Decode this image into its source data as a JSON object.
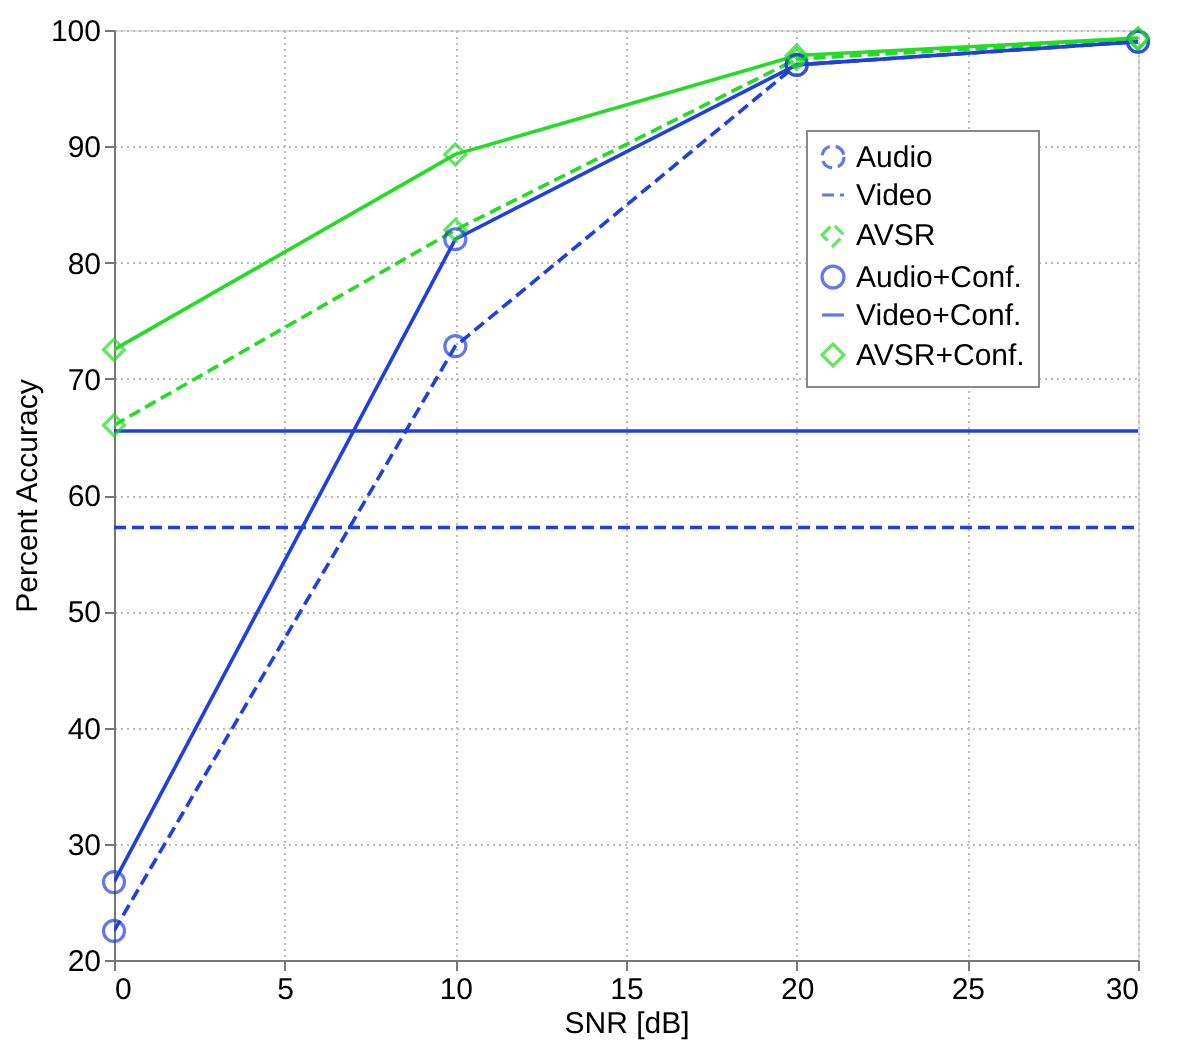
{
  "chart_data": {
    "type": "line",
    "xlabel": "SNR [dB]",
    "ylabel": "Percent Accuracy",
    "x": [
      0,
      10,
      20,
      30
    ],
    "series": [
      {
        "name": "Audio",
        "color": "#1f3fe0",
        "values": [
          22.5,
          72.8,
          97.0,
          99.0
        ],
        "marker": "circle",
        "line_style": "dashed"
      },
      {
        "name": "Video",
        "color": "#1f3fe0",
        "values": [
          57.2,
          57.2,
          57.2,
          57.2
        ],
        "marker": "none",
        "line_style": "dashed"
      },
      {
        "name": "AVSR",
        "color": "#22dd22",
        "values": [
          66.0,
          82.8,
          97.5,
          99.2
        ],
        "marker": "diamond",
        "line_style": "dashed"
      },
      {
        "name": "Audio+Conf.",
        "color": "#1f3fe0",
        "values": [
          26.7,
          82.0,
          97.0,
          99.0
        ],
        "marker": "circle",
        "line_style": "solid"
      },
      {
        "name": "Video+Conf.",
        "color": "#1f3fe0",
        "values": [
          65.5,
          65.5,
          65.5,
          65.5
        ],
        "marker": "none",
        "line_style": "solid"
      },
      {
        "name": "AVSR+Conf.",
        "color": "#22dd22",
        "values": [
          72.5,
          89.3,
          97.8,
          99.3
        ],
        "marker": "diamond",
        "line_style": "solid"
      }
    ],
    "xlim": [
      0,
      30
    ],
    "xticks": [
      0,
      5,
      10,
      15,
      20,
      25,
      30
    ],
    "ylim": [
      20,
      100
    ],
    "yticks": [
      20,
      30,
      40,
      50,
      60,
      70,
      80,
      90,
      100
    ],
    "grid": true,
    "legend": "top right"
  }
}
